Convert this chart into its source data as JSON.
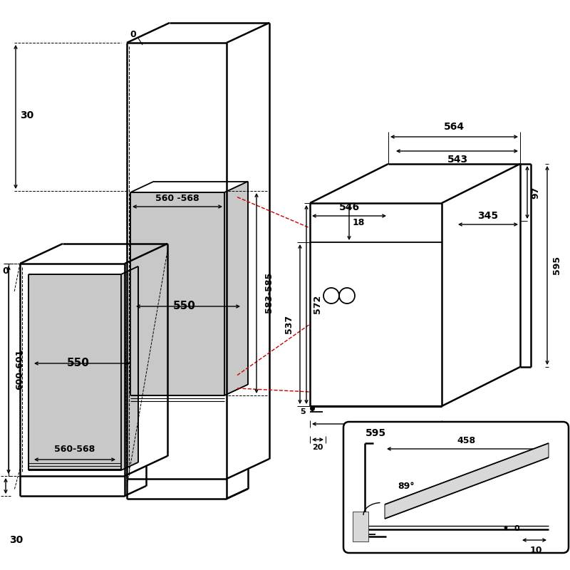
{
  "bg_color": "#ffffff",
  "line_color": "#000000",
  "gray_fill": "#c8c8c8",
  "gray_fill2": "#d8d8d8",
  "red_dashed": "#cc0000",
  "annotations": {
    "dim_0_top": "0",
    "dim_0_left": "0",
    "dim_30_top": "30",
    "dim_30_bottom": "30",
    "dim_560_568_top": "560 -568",
    "dim_583_585": "583-585",
    "dim_550_top": "550",
    "dim_550_bottom": "550",
    "dim_560_568_bottom": "560-568",
    "dim_600_601": "600-601",
    "dim_564": "564",
    "dim_543": "543",
    "dim_546": "546",
    "dim_345": "345",
    "dim_18": "18",
    "dim_97": "97",
    "dim_537": "537",
    "dim_572": "572",
    "dim_595_side": "595",
    "dim_595_bottom": "595",
    "dim_5": "5",
    "dim_20": "20",
    "dim_458": "458",
    "dim_89": "89°",
    "dim_0_detail": "0",
    "dim_10": "10"
  }
}
